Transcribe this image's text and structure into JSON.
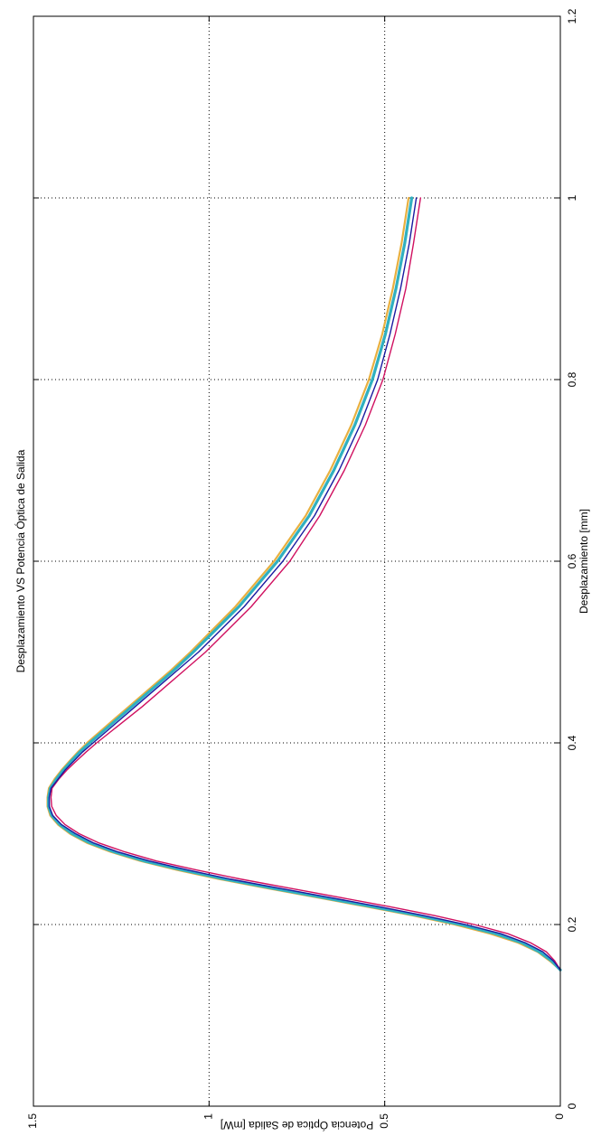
{
  "chart_data": {
    "type": "line",
    "title": "Desplazamiento  VS Potencia Óptica de Salida",
    "xlabel": "Desplazamiento [mm]",
    "ylabel": "Potencia Óptica de Salida [mW]",
    "xlim": [
      0,
      1.2
    ],
    "ylim": [
      0,
      1.5
    ],
    "xticks": [
      0,
      0.2,
      0.4,
      0.6,
      0.8,
      1,
      1.2
    ],
    "xtick_labels": [
      "0",
      "0.2",
      "0.4",
      "0.6",
      "0.8",
      "1",
      "1.2"
    ],
    "yticks": [
      0,
      0.5,
      1,
      1.5
    ],
    "ytick_labels": [
      "0",
      "0.5",
      "1",
      "1.5"
    ],
    "grid": true,
    "orientation": "rotated 90° clockwise",
    "series": [
      {
        "color": "#1a1aa0",
        "x": [
          0.15,
          0.16,
          0.17,
          0.18,
          0.19,
          0.2,
          0.21,
          0.22,
          0.23,
          0.24,
          0.25,
          0.26,
          0.27,
          0.28,
          0.29,
          0.3,
          0.31,
          0.32,
          0.33,
          0.34,
          0.35,
          0.36,
          0.37,
          0.38,
          0.39,
          0.4,
          0.42,
          0.44,
          0.46,
          0.48,
          0.5,
          0.55,
          0.6,
          0.65,
          0.7,
          0.75,
          0.8,
          0.85,
          0.9,
          0.95,
          1.0
        ],
        "y": [
          0.0,
          0.02,
          0.05,
          0.1,
          0.17,
          0.27,
          0.39,
          0.52,
          0.66,
          0.8,
          0.94,
          1.06,
          1.17,
          1.26,
          1.33,
          1.38,
          1.42,
          1.445,
          1.455,
          1.455,
          1.45,
          1.43,
          1.41,
          1.385,
          1.36,
          1.33,
          1.27,
          1.21,
          1.15,
          1.09,
          1.03,
          0.9,
          0.79,
          0.7,
          0.63,
          0.57,
          0.52,
          0.485,
          0.455,
          0.43,
          0.41
        ]
      },
      {
        "color": "#d01060",
        "x": [
          0.15,
          0.16,
          0.17,
          0.18,
          0.19,
          0.2,
          0.21,
          0.22,
          0.23,
          0.24,
          0.25,
          0.26,
          0.27,
          0.28,
          0.29,
          0.3,
          0.31,
          0.32,
          0.33,
          0.34,
          0.35,
          0.36,
          0.37,
          0.38,
          0.39,
          0.4,
          0.42,
          0.44,
          0.46,
          0.48,
          0.5,
          0.55,
          0.6,
          0.65,
          0.7,
          0.75,
          0.8,
          0.85,
          0.9,
          0.95,
          1.0
        ],
        "y": [
          0.0,
          0.016,
          0.04,
          0.085,
          0.15,
          0.245,
          0.36,
          0.49,
          0.63,
          0.77,
          0.91,
          1.035,
          1.15,
          1.24,
          1.315,
          1.37,
          1.41,
          1.435,
          1.448,
          1.45,
          1.447,
          1.428,
          1.405,
          1.378,
          1.35,
          1.32,
          1.255,
          1.19,
          1.13,
          1.07,
          1.01,
          0.88,
          0.77,
          0.685,
          0.615,
          0.555,
          0.505,
          0.47,
          0.44,
          0.418,
          0.398
        ]
      },
      {
        "color": "#30b0c0",
        "x": [
          0.15,
          0.16,
          0.17,
          0.18,
          0.19,
          0.2,
          0.21,
          0.22,
          0.23,
          0.24,
          0.25,
          0.26,
          0.27,
          0.28,
          0.29,
          0.3,
          0.31,
          0.32,
          0.33,
          0.34,
          0.35,
          0.36,
          0.37,
          0.38,
          0.39,
          0.4,
          0.42,
          0.44,
          0.46,
          0.48,
          0.5,
          0.55,
          0.6,
          0.65,
          0.7,
          0.75,
          0.8,
          0.85,
          0.9,
          0.95,
          1.0
        ],
        "y": [
          0.0,
          0.025,
          0.06,
          0.11,
          0.185,
          0.285,
          0.405,
          0.54,
          0.68,
          0.82,
          0.955,
          1.075,
          1.185,
          1.27,
          1.34,
          1.39,
          1.425,
          1.448,
          1.457,
          1.457,
          1.452,
          1.435,
          1.415,
          1.392,
          1.368,
          1.34,
          1.28,
          1.22,
          1.16,
          1.1,
          1.045,
          0.915,
          0.805,
          0.715,
          0.645,
          0.585,
          0.535,
          0.498,
          0.468,
          0.443,
          0.423
        ]
      },
      {
        "color": "#e8b040",
        "x": [
          0.15,
          0.16,
          0.17,
          0.18,
          0.19,
          0.2,
          0.21,
          0.22,
          0.23,
          0.24,
          0.25,
          0.26,
          0.27,
          0.28,
          0.29,
          0.3,
          0.31,
          0.32,
          0.33,
          0.34,
          0.35,
          0.36,
          0.37,
          0.38,
          0.39,
          0.4,
          0.42,
          0.44,
          0.46,
          0.48,
          0.5,
          0.55,
          0.6,
          0.65,
          0.7,
          0.75,
          0.8,
          0.85,
          0.9,
          0.95,
          1.0
        ],
        "y": [
          0.0,
          0.03,
          0.065,
          0.12,
          0.2,
          0.3,
          0.42,
          0.555,
          0.695,
          0.835,
          0.97,
          1.09,
          1.195,
          1.28,
          1.348,
          1.396,
          1.43,
          1.452,
          1.46,
          1.46,
          1.456,
          1.44,
          1.42,
          1.397,
          1.373,
          1.347,
          1.288,
          1.228,
          1.168,
          1.108,
          1.053,
          0.925,
          0.815,
          0.725,
          0.655,
          0.595,
          0.545,
          0.507,
          0.477,
          0.452,
          0.432
        ]
      }
    ]
  }
}
